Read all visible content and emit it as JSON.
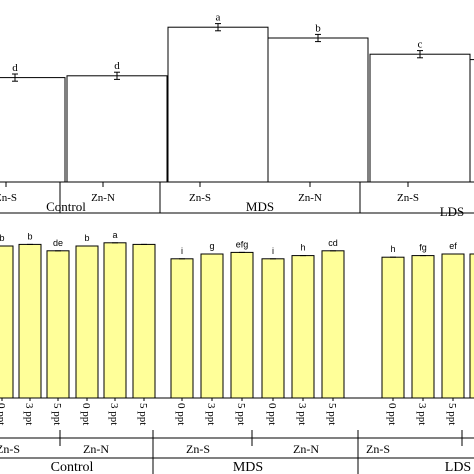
{
  "chart_data": [
    {
      "type": "bar",
      "panel": "top",
      "bars": [
        {
          "group": "Control",
          "sub": "Zn-S",
          "value": 0.58,
          "err": 0.02,
          "letter": "d"
        },
        {
          "group": "Control",
          "sub": "Zn-N",
          "value": 0.59,
          "err": 0.02,
          "letter": "d"
        },
        {
          "group": "MDS",
          "sub": "Zn-S",
          "value": 0.86,
          "err": 0.02,
          "letter": "a"
        },
        {
          "group": "MDS",
          "sub": "Zn-N",
          "value": 0.8,
          "err": 0.02,
          "letter": "b"
        },
        {
          "group": "LDS",
          "sub": "Zn-S",
          "value": 0.71,
          "err": 0.02,
          "letter": "c"
        },
        {
          "group": "LDS",
          "sub": "Zn-N",
          "value": 0.68,
          "err": 0.02,
          "letter": ""
        }
      ],
      "groups": [
        "Control",
        "MDS",
        "LDS"
      ],
      "sub_labels": [
        "Zn-S",
        "Zn-N"
      ],
      "fill": "#ffffff",
      "stroke": "#000000"
    },
    {
      "type": "bar",
      "panel": "bottom",
      "bars": [
        {
          "group": "Control",
          "sub": "Zn-S",
          "dose": "0 ppt",
          "value": 0.95,
          "letter": "b"
        },
        {
          "group": "Control",
          "sub": "Zn-S",
          "dose": "3 ppt",
          "value": 0.96,
          "letter": "b"
        },
        {
          "group": "Control",
          "sub": "Zn-S",
          "dose": "5 ppt",
          "value": 0.92,
          "letter": "de"
        },
        {
          "group": "Control",
          "sub": "Zn-N",
          "dose": "0 ppt",
          "value": 0.95,
          "letter": "b"
        },
        {
          "group": "Control",
          "sub": "Zn-N",
          "dose": "3 ppt",
          "value": 0.97,
          "letter": "a"
        },
        {
          "group": "Control",
          "sub": "Zn-N",
          "dose": "5 ppt",
          "value": 0.96,
          "letter": ""
        },
        {
          "group": "MDS",
          "sub": "Zn-S",
          "dose": "0 ppt",
          "value": 0.87,
          "letter": "i"
        },
        {
          "group": "MDS",
          "sub": "Zn-S",
          "dose": "3 ppt",
          "value": 0.9,
          "letter": "g"
        },
        {
          "group": "MDS",
          "sub": "Zn-S",
          "dose": "5 ppt",
          "value": 0.91,
          "letter": "efg"
        },
        {
          "group": "MDS",
          "sub": "Zn-N",
          "dose": "0 ppt",
          "value": 0.87,
          "letter": "i"
        },
        {
          "group": "MDS",
          "sub": "Zn-N",
          "dose": "3 ppt",
          "value": 0.89,
          "letter": "h"
        },
        {
          "group": "MDS",
          "sub": "Zn-N",
          "dose": "5 ppt",
          "value": 0.92,
          "letter": "cd"
        },
        {
          "group": "LDS",
          "sub": "Zn-S",
          "dose": "0 ppt",
          "value": 0.88,
          "letter": "h"
        },
        {
          "group": "LDS",
          "sub": "Zn-S",
          "dose": "3 ppt",
          "value": 0.89,
          "letter": "fg"
        },
        {
          "group": "LDS",
          "sub": "Zn-S",
          "dose": "5 ppt",
          "value": 0.9,
          "letter": "ef"
        },
        {
          "group": "LDS",
          "sub": "Zn-N",
          "dose": "0 ppt",
          "value": 0.9,
          "letter": ""
        }
      ],
      "groups": [
        "Control",
        "MDS",
        "LDS"
      ],
      "sub_labels": [
        "Zn-S",
        "Zn-N"
      ],
      "doses": [
        "0 ppt",
        "3 ppt",
        "5 ppt"
      ],
      "fill": "#ffff99",
      "stroke": "#000000"
    }
  ]
}
